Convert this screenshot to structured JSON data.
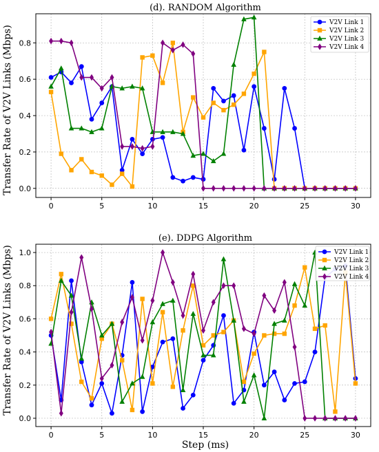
{
  "chart_data": [
    {
      "type": "line",
      "title": "(d). RANDOM Algorithm",
      "xlabel": "",
      "ylabel": "Transfer Rate of V2V Links (Mbps)",
      "xlim": [
        -1.5,
        31.5
      ],
      "ylim": [
        -0.05,
        0.96
      ],
      "xticks": [
        0,
        5,
        10,
        15,
        20,
        25,
        30
      ],
      "yticks": [
        0.0,
        0.2,
        0.4,
        0.6,
        0.8
      ],
      "ytick_labels": [
        "0.0",
        "0.2",
        "0.4",
        "0.6",
        "0.8"
      ],
      "grid": true,
      "legend": "top-right",
      "x": [
        0,
        1,
        2,
        3,
        4,
        5,
        6,
        7,
        8,
        9,
        10,
        11,
        12,
        13,
        14,
        15,
        16,
        17,
        18,
        19,
        20,
        21,
        22,
        23,
        24,
        25,
        26,
        27,
        28,
        29,
        30
      ],
      "series": [
        {
          "name": "V2V Link 1",
          "color": "#0000ff",
          "marker": "circle",
          "values": [
            0.61,
            0.64,
            0.58,
            0.67,
            0.38,
            0.47,
            0.56,
            0.1,
            0.27,
            0.19,
            0.27,
            0.28,
            0.06,
            0.04,
            0.06,
            0.05,
            0.55,
            0.48,
            0.51,
            0.21,
            0.56,
            0.33,
            0.05,
            0.55,
            0.33,
            0,
            0,
            0,
            0,
            0,
            0
          ]
        },
        {
          "name": "V2V Link 2",
          "color": "#ffa500",
          "marker": "square",
          "values": [
            0.53,
            0.19,
            0.1,
            0.16,
            0.09,
            0.07,
            0.02,
            0.08,
            0.01,
            0.72,
            0.73,
            0.58,
            0.8,
            0.31,
            0.5,
            0.39,
            0.47,
            0.43,
            0.46,
            0.52,
            0.63,
            0.75,
            0,
            0,
            0,
            0,
            0,
            0,
            0,
            0,
            0
          ]
        },
        {
          "name": "V2V Link 3",
          "color": "#008000",
          "marker": "triangle",
          "values": [
            0.56,
            0.66,
            0.33,
            0.33,
            0.31,
            0.33,
            0.56,
            0.55,
            0.56,
            0.55,
            0.31,
            0.31,
            0.31,
            0.3,
            0.18,
            0.19,
            0.15,
            0.19,
            0.68,
            0.93,
            0.94,
            0,
            0,
            0,
            0,
            0,
            0,
            0,
            0,
            0,
            0
          ]
        },
        {
          "name": "V2V Link 4",
          "color": "#800080",
          "marker": "diamond",
          "values": [
            0.81,
            0.81,
            0.8,
            0.61,
            0.61,
            0.55,
            0.61,
            0.23,
            0.23,
            0.22,
            0.23,
            0.8,
            0.76,
            0.79,
            0.74,
            0,
            0,
            0,
            0,
            0,
            0,
            0,
            0,
            0,
            0,
            0,
            0,
            0,
            0,
            0,
            0
          ]
        }
      ]
    },
    {
      "type": "line",
      "title": "(e). DDPG Algorithm",
      "xlabel": "Step (ms)",
      "ylabel": "Transfer Rate of V2V Links (Mbps)",
      "xlim": [
        -1.5,
        31.5
      ],
      "ylim": [
        -0.05,
        1.05
      ],
      "xticks": [
        0,
        5,
        10,
        15,
        20,
        25,
        30
      ],
      "yticks": [
        0.0,
        0.2,
        0.4,
        0.6,
        0.8,
        1.0
      ],
      "ytick_labels": [
        "0.0",
        "0.2",
        "0.4",
        "0.6",
        "0.8",
        "1.0"
      ],
      "grid": true,
      "legend": "top-right",
      "x": [
        0,
        1,
        2,
        3,
        4,
        5,
        6,
        7,
        8,
        9,
        10,
        11,
        12,
        13,
        14,
        15,
        16,
        17,
        18,
        19,
        20,
        21,
        22,
        23,
        24,
        25,
        26,
        27,
        28,
        29,
        30
      ],
      "series": [
        {
          "name": "V2V Link 1",
          "color": "#0000ff",
          "marker": "circle",
          "values": [
            0.5,
            0.11,
            0.83,
            0.34,
            0.08,
            0.21,
            0.03,
            0.38,
            0.82,
            0.04,
            0.31,
            0.46,
            0.48,
            0.06,
            0.14,
            0.35,
            0.44,
            0.62,
            0.09,
            0.17,
            0.52,
            0.2,
            0.28,
            0.11,
            0.21,
            0.22,
            0.4,
            0.85,
            0.9,
            0.92,
            0.24
          ]
        },
        {
          "name": "V2V Link 2",
          "color": "#ffa500",
          "marker": "square",
          "values": [
            0.6,
            0.87,
            0.57,
            0.22,
            0.12,
            0.48,
            0.57,
            0.35,
            0.05,
            0.72,
            0.21,
            0.64,
            0.19,
            0.53,
            0.8,
            0.44,
            0.5,
            0.52,
            0.59,
            0.22,
            0.39,
            0.5,
            0.51,
            0.51,
            0.68,
            0.91,
            0.54,
            0.56,
            0.04,
            0.88,
            0.21
          ]
        },
        {
          "name": "V2V Link 3",
          "color": "#008000",
          "marker": "triangle",
          "values": [
            0.45,
            0.83,
            0.74,
            0.36,
            0.7,
            0.5,
            0.57,
            0.1,
            0.21,
            0.25,
            0.58,
            0.69,
            0.71,
            0.17,
            0.63,
            0.38,
            0.38,
            0.96,
            0.59,
            0.1,
            0.26,
            0.0,
            0.57,
            0.59,
            0.81,
            0.68,
            1.0,
            0,
            0,
            0,
            0
          ]
        },
        {
          "name": "V2V Link 4",
          "color": "#800080",
          "marker": "diamond",
          "values": [
            0.52,
            0.03,
            0.64,
            0.97,
            0.66,
            0.24,
            0.32,
            0.58,
            0.73,
            0.47,
            0.71,
            1.0,
            0.82,
            0.62,
            0.87,
            0.53,
            0.7,
            0.8,
            0.8,
            0.54,
            0.51,
            0.74,
            0.65,
            0.82,
            0.43,
            0,
            0,
            0,
            0,
            0,
            0
          ]
        }
      ]
    }
  ]
}
